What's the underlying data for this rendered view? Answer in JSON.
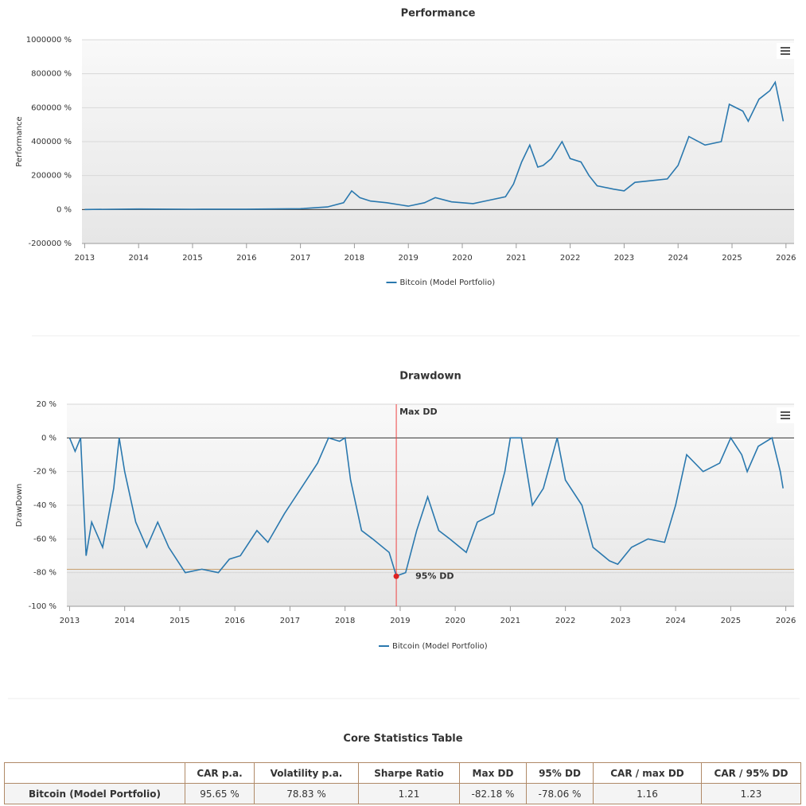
{
  "chart_data": [
    {
      "type": "line",
      "title": "Performance",
      "y_label": "Performance",
      "x": [
        2013.0,
        2014.0,
        2015.0,
        2016.0,
        2017.0,
        2017.5,
        2017.8,
        2017.95,
        2018.1,
        2018.3,
        2018.6,
        2018.9,
        2019.0,
        2019.3,
        2019.5,
        2019.8,
        2020.2,
        2020.5,
        2020.8,
        2020.95,
        2021.1,
        2021.25,
        2021.4,
        2021.5,
        2021.65,
        2021.85,
        2022.0,
        2022.2,
        2022.35,
        2022.5,
        2022.8,
        2023.0,
        2023.2,
        2023.5,
        2023.8,
        2024.0,
        2024.2,
        2024.5,
        2024.8,
        2024.95,
        2025.2,
        2025.3,
        2025.5,
        2025.7,
        2025.8,
        2025.9,
        2025.95
      ],
      "series": [
        {
          "name": "Bitcoin (Model Portfolio)",
          "color": "#2a78ae",
          "values": [
            0,
            3000,
            1500,
            2000,
            5000,
            15000,
            40000,
            110000,
            70000,
            50000,
            40000,
            25000,
            20000,
            40000,
            70000,
            45000,
            35000,
            55000,
            75000,
            150000,
            280000,
            380000,
            250000,
            260000,
            300000,
            400000,
            300000,
            280000,
            200000,
            140000,
            120000,
            110000,
            160000,
            170000,
            180000,
            260000,
            430000,
            380000,
            400000,
            620000,
            580000,
            520000,
            650000,
            700000,
            750000,
            600000,
            520000
          ]
        }
      ],
      "xlim": [
        2012.95,
        2026.15
      ],
      "xticks": [
        2013,
        2014,
        2015,
        2016,
        2017,
        2018,
        2019,
        2020,
        2021,
        2022,
        2023,
        2024,
        2025,
        2026
      ],
      "ylim": [
        -200000,
        1000000
      ],
      "yticks": [
        {
          "value": -200000,
          "label": "-200000 %"
        },
        {
          "value": 0,
          "label": "0 %"
        },
        {
          "value": 200000,
          "label": "200000 %"
        },
        {
          "value": 400000,
          "label": "400000 %"
        },
        {
          "value": 600000,
          "label": "600000 %"
        },
        {
          "value": 800000,
          "label": "800000 %"
        },
        {
          "value": 1000000,
          "label": "1000000 %"
        }
      ],
      "grid": true
    },
    {
      "type": "line",
      "title": "Drawdown",
      "y_label": "DrawDown",
      "x": [
        2013.0,
        2013.1,
        2013.2,
        2013.3,
        2013.4,
        2013.6,
        2013.8,
        2013.9,
        2014.0,
        2014.2,
        2014.4,
        2014.6,
        2014.8,
        2015.0,
        2015.1,
        2015.4,
        2015.7,
        2015.9,
        2016.1,
        2016.4,
        2016.6,
        2016.9,
        2017.0,
        2017.2,
        2017.5,
        2017.7,
        2017.9,
        2018.0,
        2018.1,
        2018.3,
        2018.5,
        2018.8,
        2018.93,
        2019.1,
        2019.3,
        2019.5,
        2019.7,
        2019.9,
        2020.2,
        2020.4,
        2020.7,
        2020.9,
        2021.0,
        2021.2,
        2021.4,
        2021.6,
        2021.85,
        2022.0,
        2022.3,
        2022.5,
        2022.8,
        2022.95,
        2023.2,
        2023.5,
        2023.8,
        2024.0,
        2024.2,
        2024.5,
        2024.8,
        2025.0,
        2025.2,
        2025.3,
        2025.5,
        2025.75,
        2025.9,
        2025.95
      ],
      "series": [
        {
          "name": "Bitcoin (Model Portfolio)",
          "color": "#2a78ae",
          "values": [
            0,
            -8,
            0,
            -70,
            -50,
            -65,
            -30,
            0,
            -20,
            -50,
            -65,
            -50,
            -65,
            -75,
            -80,
            -78,
            -80,
            -72,
            -70,
            -55,
            -62,
            -45,
            -40,
            -30,
            -15,
            0,
            -2,
            0,
            -25,
            -55,
            -60,
            -68,
            -82,
            -80,
            -55,
            -35,
            -55,
            -60,
            -68,
            -50,
            -45,
            -20,
            0,
            0,
            -40,
            -30,
            0,
            -25,
            -40,
            -65,
            -73,
            -75,
            -65,
            -60,
            -62,
            -40,
            -10,
            -20,
            -15,
            0,
            -10,
            -20,
            -5,
            0,
            -20,
            -30
          ]
        }
      ],
      "xlim": [
        2012.95,
        2026.15
      ],
      "xticks": [
        2013,
        2014,
        2015,
        2016,
        2017,
        2018,
        2019,
        2020,
        2021,
        2022,
        2023,
        2024,
        2025,
        2026
      ],
      "ylim": [
        -100,
        20
      ],
      "yticks": [
        {
          "value": -100,
          "label": "-100 %"
        },
        {
          "value": -80,
          "label": "-80 %"
        },
        {
          "value": -60,
          "label": "-60 %"
        },
        {
          "value": -40,
          "label": "-40 %"
        },
        {
          "value": -20,
          "label": "-20 %"
        },
        {
          "value": 0,
          "label": "0 %"
        },
        {
          "value": 20,
          "label": "20 %"
        }
      ],
      "grid": true,
      "max_dd": {
        "label": "Max DD",
        "x": 2018.93,
        "value": -82.18
      },
      "dd95": {
        "label": "95% DD",
        "value": -78.06
      }
    }
  ],
  "table": {
    "title": "Core Statistics Table",
    "columns": [
      "CAR p.a.",
      "Volatility p.a.",
      "Sharpe Ratio",
      "Max DD",
      "95% DD",
      "CAR / max DD",
      "CAR / 95% DD"
    ],
    "rows": [
      [
        "Bitcoin (Model Portfolio)",
        "95.65 %",
        "78.83 %",
        "1.21",
        "-82.18 %",
        "-78.06 %",
        "1.16",
        "1.23"
      ]
    ]
  }
}
